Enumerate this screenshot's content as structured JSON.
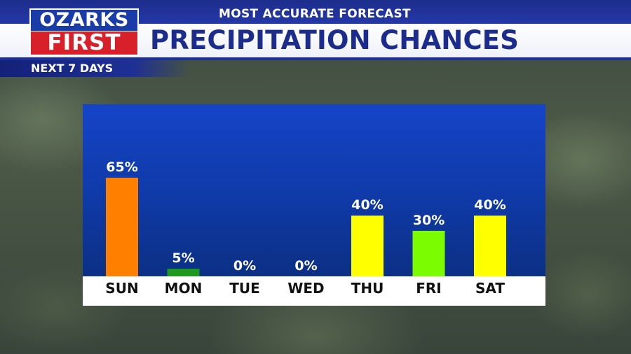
{
  "header": {
    "top_banner": "MOST ACCURATE FORECAST",
    "title": "PRECIPITATION CHANCES",
    "subtitle": "NEXT 7 DAYS"
  },
  "logo": {
    "line1": "OZARKS",
    "line2": "FIRST"
  },
  "colors": {
    "header_blue": "#1c2c8c",
    "logo_red": "#d8202a",
    "chart_background": "#1544c8"
  },
  "chart_data": {
    "type": "bar",
    "categories": [
      "SUN",
      "MON",
      "TUE",
      "WED",
      "THU",
      "FRI",
      "SAT"
    ],
    "values": [
      65,
      5,
      0,
      0,
      40,
      30,
      40
    ],
    "labels": [
      "65%",
      "5%",
      "0%",
      "0%",
      "40%",
      "30%",
      "40%"
    ],
    "bar_colors": [
      "#ff7f00",
      "#1f9a1f",
      "#1f9a1f",
      "#1f9a1f",
      "#ffff00",
      "#7cfc00",
      "#ffff00"
    ],
    "title": "",
    "xlabel": "",
    "ylabel": "",
    "ylim": [
      0,
      100
    ],
    "grid": false
  }
}
